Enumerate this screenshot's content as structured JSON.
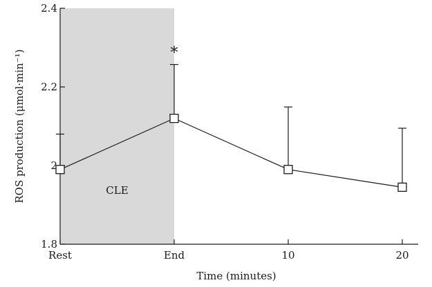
{
  "chart_data": {
    "type": "line",
    "x_categories": [
      "Rest",
      "End",
      "10",
      "20"
    ],
    "x": [
      0,
      1,
      2,
      3
    ],
    "series": [
      {
        "values": [
          1.99,
          2.12,
          1.99,
          1.945
        ],
        "error_upper": [
          2.08,
          2.257,
          2.149,
          2.095
        ]
      }
    ],
    "ylim": [
      1.8,
      2.4
    ],
    "y_ticks": [
      {
        "value": 1.8,
        "label": "1.8"
      },
      {
        "value": 2.0,
        "label": "2"
      },
      {
        "value": 2.2,
        "label": "2.2"
      },
      {
        "value": 2.4,
        "label": "2.4"
      }
    ],
    "xlabel": "Time (minutes)",
    "ylabel": "ROS production (μmol·min⁻¹)",
    "shaded_region": {
      "from": "Rest",
      "to": "End",
      "label": "CLE",
      "color": "#d9d9d9"
    },
    "annotations": [
      {
        "x": "End",
        "text": "*"
      }
    ],
    "line_color": "#1a1a1a",
    "marker": "open-square",
    "grid": false,
    "legend": "none"
  }
}
